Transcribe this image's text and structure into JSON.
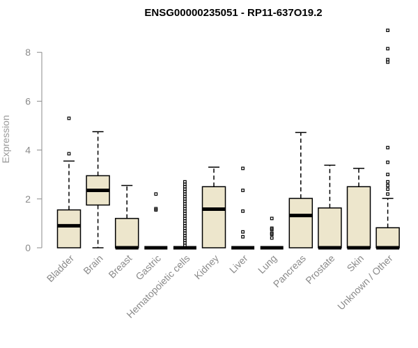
{
  "chart_data": {
    "type": "box",
    "title": "ENSG00000235051 - RP11-637O19.2",
    "ylabel": "Expression",
    "xlabel": "",
    "ylim": [
      0,
      8
    ],
    "yticks": [
      0,
      2,
      4,
      6,
      8
    ],
    "grid": false,
    "box_color": "#ede6cc",
    "categories": [
      "Bladder",
      "Brain",
      "Breast",
      "Gastric",
      "Hematopoietic cells",
      "Kidney",
      "Liver",
      "Lung",
      "Pancreas",
      "Prostate",
      "Skin",
      "Unknown / Other"
    ],
    "boxes": [
      {
        "whisker_low": 0,
        "q1": 0,
        "median": 0.9,
        "q3": 1.55,
        "whisker_high": 3.55,
        "outliers": [
          3.85,
          5.3
        ]
      },
      {
        "whisker_low": 0,
        "q1": 1.75,
        "median": 2.35,
        "q3": 2.95,
        "whisker_high": 4.75,
        "outliers": []
      },
      {
        "whisker_low": 0,
        "q1": 0,
        "median": 0,
        "q3": 1.2,
        "whisker_high": 2.55,
        "outliers": []
      },
      {
        "whisker_low": 0,
        "q1": 0,
        "median": 0,
        "q3": 0,
        "whisker_high": 0,
        "outliers": [
          1.55,
          1.6,
          2.2
        ]
      },
      {
        "whisker_low": 0,
        "q1": 0,
        "median": 0,
        "q3": 0,
        "whisker_high": 0,
        "outliers": [
          0.1,
          0.2,
          0.3,
          0.4,
          0.5,
          0.6,
          0.7,
          0.8,
          0.9,
          1.0,
          1.1,
          1.2,
          1.3,
          1.4,
          1.5,
          1.6,
          1.7,
          1.8,
          1.9,
          2.0,
          2.1,
          2.2,
          2.3,
          2.4,
          2.5,
          2.6,
          2.7
        ]
      },
      {
        "whisker_low": 0,
        "q1": 0,
        "median": 1.58,
        "q3": 2.5,
        "whisker_high": 3.3,
        "outliers": []
      },
      {
        "whisker_low": 0,
        "q1": 0,
        "median": 0,
        "q3": 0,
        "whisker_high": 0,
        "outliers": [
          0.45,
          0.65,
          1.5,
          2.35,
          3.25
        ]
      },
      {
        "whisker_low": 0,
        "q1": 0,
        "median": 0,
        "q3": 0,
        "whisker_high": 0,
        "outliers": [
          0.4,
          0.55,
          0.6,
          0.75,
          0.8,
          1.2
        ]
      },
      {
        "whisker_low": 0,
        "q1": 0,
        "median": 1.32,
        "q3": 2.02,
        "whisker_high": 4.72,
        "outliers": []
      },
      {
        "whisker_low": 0,
        "q1": 0,
        "median": 0,
        "q3": 1.63,
        "whisker_high": 3.38,
        "outliers": []
      },
      {
        "whisker_low": 0,
        "q1": 0,
        "median": 0,
        "q3": 2.5,
        "whisker_high": 3.25,
        "outliers": []
      },
      {
        "whisker_low": 0,
        "q1": 0,
        "median": 0,
        "q3": 0.82,
        "whisker_high": 2.02,
        "outliers": [
          2.2,
          2.4,
          2.55,
          2.7,
          3.0,
          3.5,
          4.1,
          7.6,
          7.7,
          8.15,
          8.9
        ]
      }
    ]
  }
}
